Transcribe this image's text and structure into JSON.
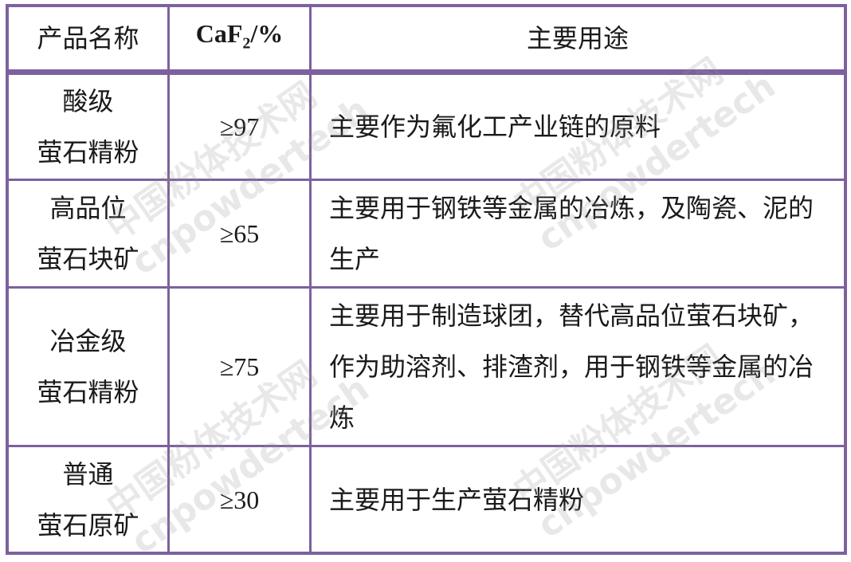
{
  "table": {
    "headers": [
      "产品名称",
      "CaF",
      "2",
      "/%",
      "主要用途"
    ],
    "rows": [
      {
        "name": [
          "酸级",
          "萤石精粉"
        ],
        "caf2": "≥97",
        "use": "主要作为氟化工产业链的原料"
      },
      {
        "name": [
          "高品位",
          "萤石块矿"
        ],
        "caf2": "≥65",
        "use": "主要用于钢铁等金属的冶炼，及陶瓷、泥的生产"
      },
      {
        "name": [
          "冶金级",
          "萤石精粉"
        ],
        "caf2": "≥75",
        "use": "主要用于制造球团，替代高品位萤石块矿，作为助溶剂、排渣剂，用于钢铁等金属的冶炼"
      },
      {
        "name": [
          "普通",
          "萤石原矿"
        ],
        "caf2": "≥30",
        "use": "主要用于生产萤石精粉"
      }
    ]
  },
  "watermark": {
    "cn": "中国粉体技术网",
    "en": "cnpowdertech"
  },
  "colors": {
    "border": "#7d619e"
  }
}
